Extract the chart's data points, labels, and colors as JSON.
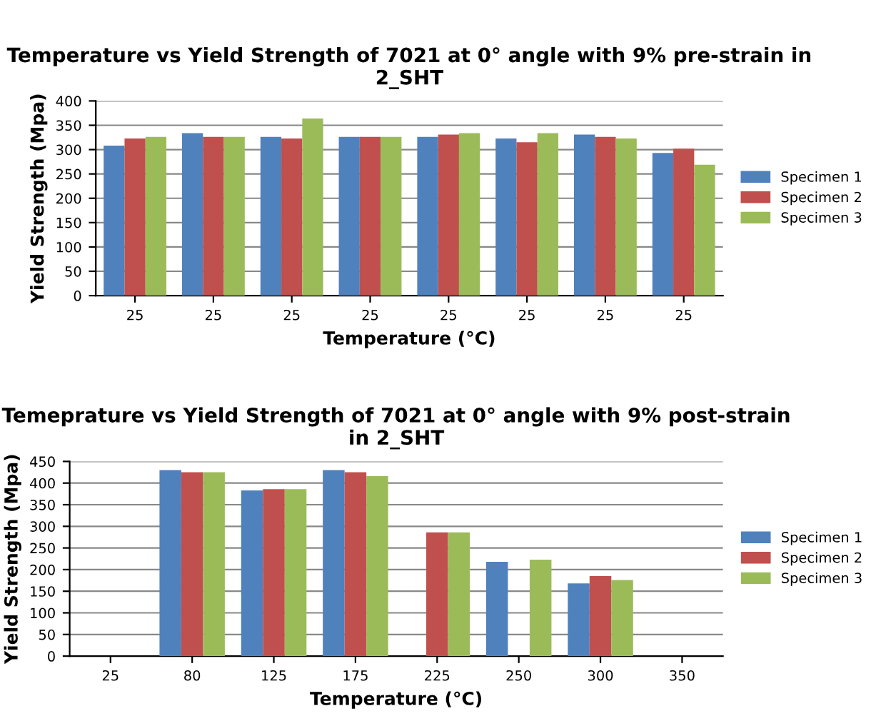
{
  "chart_data": [
    {
      "type": "bar",
      "title": "Temperature vs Yield Strength of 7021 at 0° angle with 9% pre-strain in 2_SHT",
      "xlabel": "Temperature (°C)",
      "ylabel": "Yield Strength (Mpa)",
      "categories": [
        "25",
        "25",
        "25",
        "25",
        "25",
        "25",
        "25",
        "25"
      ],
      "series": [
        {
          "name": "Specimen 1",
          "color": "#4f81bd",
          "values": [
            308,
            334,
            326,
            326,
            326,
            323,
            331,
            293
          ]
        },
        {
          "name": "Specimen 2",
          "color": "#c0504d",
          "values": [
            323,
            326,
            323,
            326,
            331,
            315,
            326,
            302
          ]
        },
        {
          "name": "Specimen 3",
          "color": "#9bbb59",
          "values": [
            326,
            326,
            364,
            326,
            334,
            334,
            323,
            269
          ]
        }
      ],
      "ylim": [
        0,
        400
      ],
      "yticks": [
        0,
        50,
        100,
        150,
        200,
        250,
        300,
        350,
        400
      ],
      "grid": "y",
      "legend": "right"
    },
    {
      "type": "bar",
      "title": "Temeprature vs Yield Strength of 7021 at 0° angle with 9% post-strain in 2_SHT",
      "xlabel": "Temperature (°C)",
      "ylabel": "Yield Strength (Mpa)",
      "categories": [
        "25",
        "80",
        "125",
        "175",
        "225",
        "250",
        "300",
        "350"
      ],
      "series": [
        {
          "name": "Specimen 1",
          "color": "#4f81bd",
          "values": [
            null,
            430,
            383,
            430,
            null,
            218,
            168,
            null
          ]
        },
        {
          "name": "Specimen 2",
          "color": "#c0504d",
          "values": [
            null,
            425,
            386,
            425,
            286,
            null,
            185,
            null
          ]
        },
        {
          "name": "Specimen 3",
          "color": "#9bbb59",
          "values": [
            null,
            425,
            386,
            416,
            286,
            223,
            176,
            null
          ]
        }
      ],
      "ylim": [
        0,
        450
      ],
      "yticks": [
        0,
        50,
        100,
        150,
        200,
        250,
        300,
        350,
        400,
        450
      ],
      "grid": "y",
      "legend": "right"
    }
  ]
}
